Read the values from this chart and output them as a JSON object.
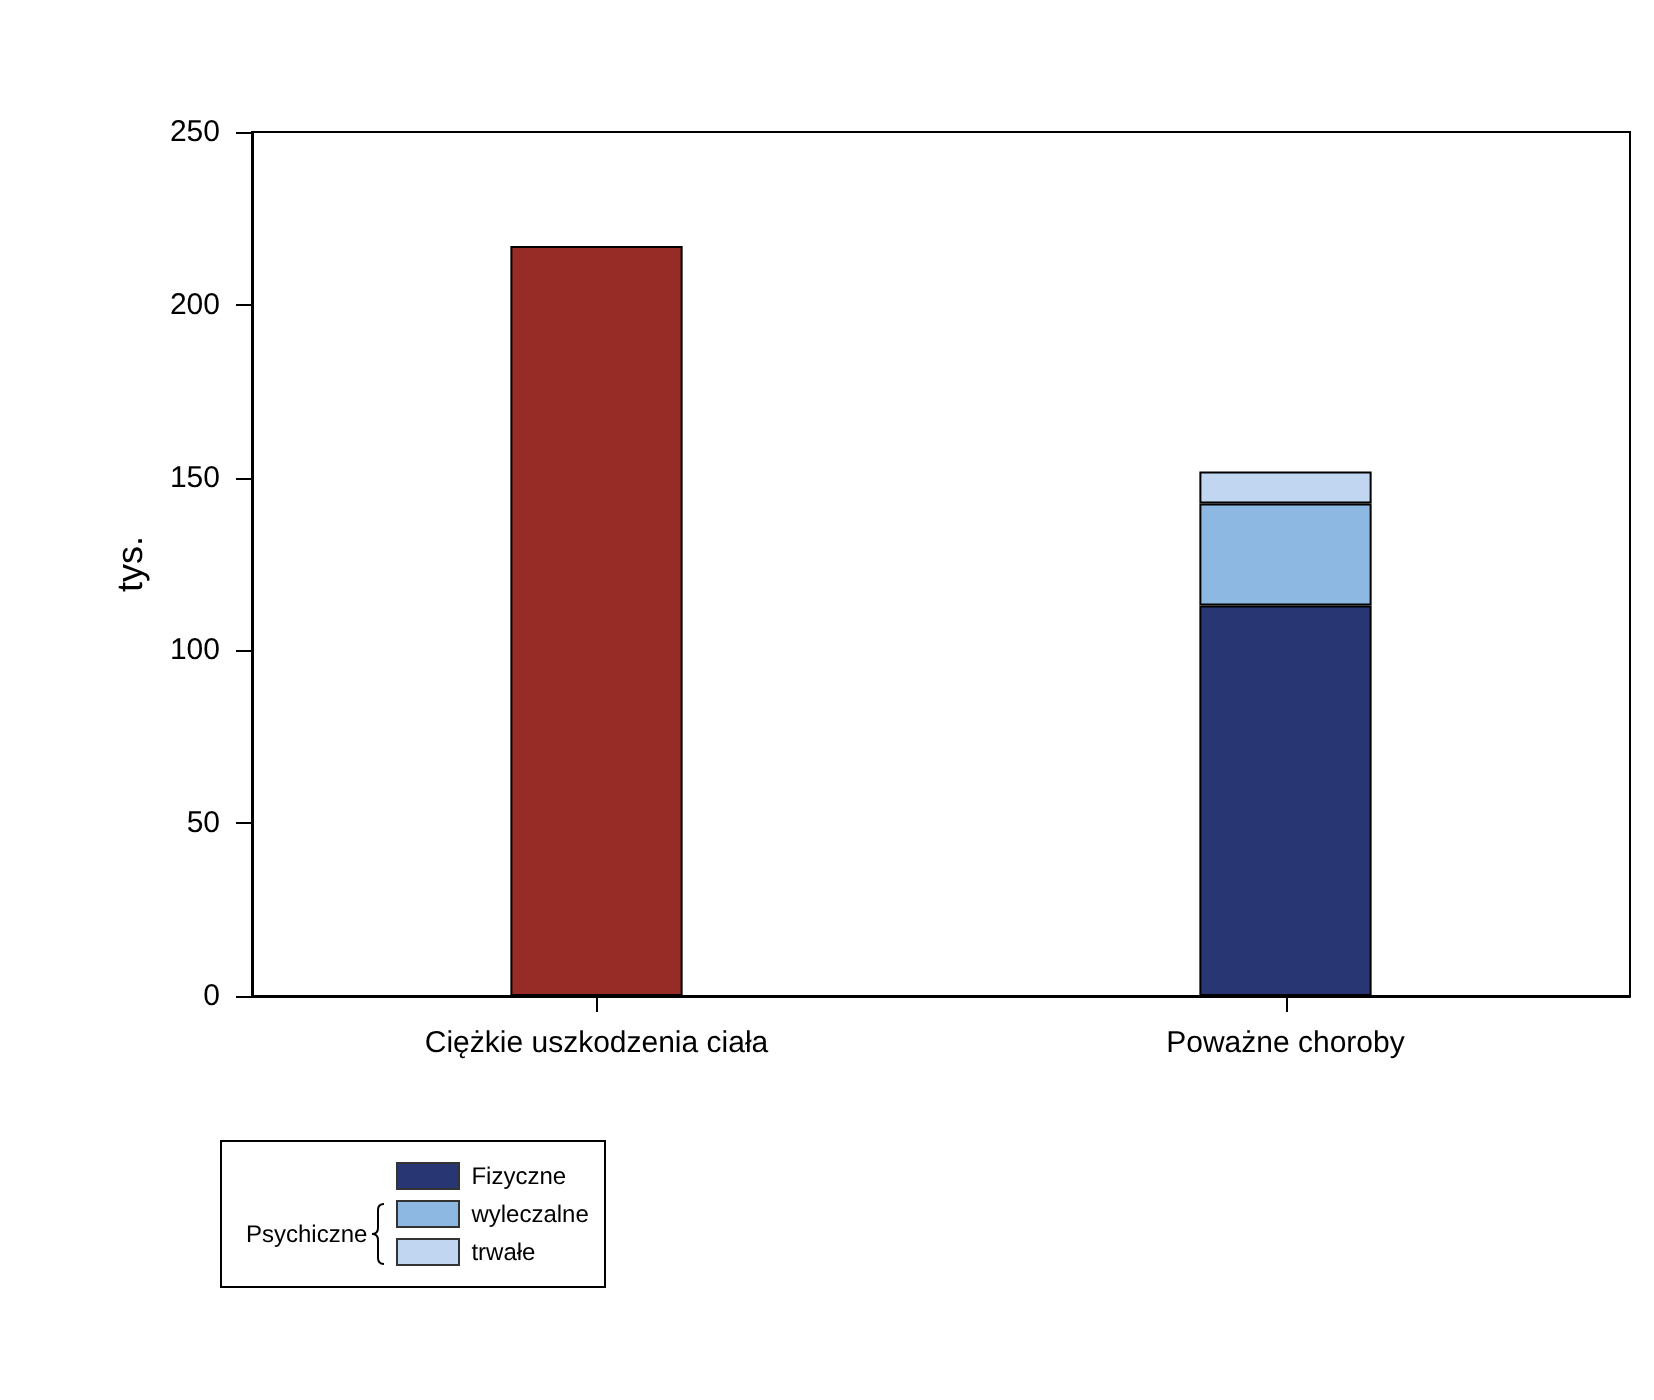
{
  "chart_data": {
    "type": "bar",
    "stacked": true,
    "ylabel": "tys.",
    "categories": [
      "Ciężkie uszkodzenia ciała",
      "Poważne choroby"
    ],
    "series": [
      {
        "color": "#972b25",
        "values": [
          217,
          null
        ]
      },
      {
        "name": "Fizyczne",
        "color": "#283673",
        "values": [
          null,
          113
        ]
      },
      {
        "name": "wyleczalne",
        "color": "#8db8e2",
        "values": [
          null,
          29.5
        ]
      },
      {
        "name": "trwałe",
        "color": "#c1d6f0",
        "values": [
          null,
          9.3
        ]
      }
    ],
    "annotations": [
      "Psychiczne"
    ],
    "ylim": [
      0,
      250
    ],
    "yticks": [
      0,
      50,
      100,
      150,
      200,
      250
    ],
    "grid": false,
    "legend": "bottom left"
  }
}
